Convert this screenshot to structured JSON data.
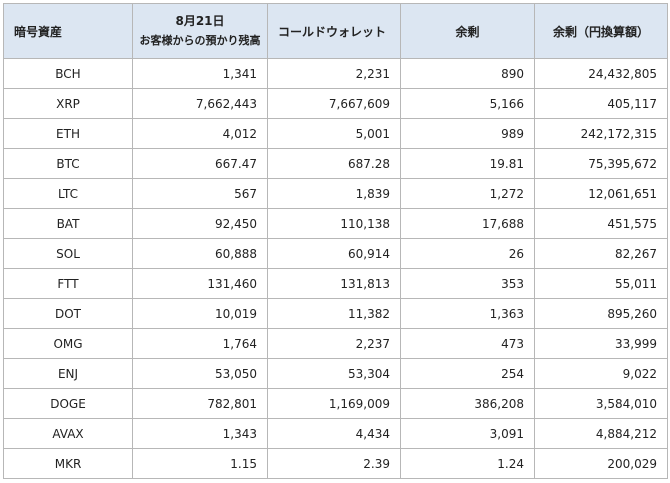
{
  "table": {
    "headers": {
      "asset": "暗号資産",
      "date": "8月21日",
      "deposit": "お客様からの預かり残高",
      "cold_wallet": "コールドウォレット",
      "surplus": "余剰",
      "surplus_yen": "余剰（円換算額）"
    },
    "rows": [
      {
        "asset": "BCH",
        "deposit": "1,341",
        "cold": "2,231",
        "surplus": "890",
        "yen": "24,432,805"
      },
      {
        "asset": "XRP",
        "deposit": "7,662,443",
        "cold": "7,667,609",
        "surplus": "5,166",
        "yen": "405,117"
      },
      {
        "asset": "ETH",
        "deposit": "4,012",
        "cold": "5,001",
        "surplus": "989",
        "yen": "242,172,315"
      },
      {
        "asset": "BTC",
        "deposit": "667.47",
        "cold": "687.28",
        "surplus": "19.81",
        "yen": "75,395,672"
      },
      {
        "asset": "LTC",
        "deposit": "567",
        "cold": "1,839",
        "surplus": "1,272",
        "yen": "12,061,651"
      },
      {
        "asset": "BAT",
        "deposit": "92,450",
        "cold": "110,138",
        "surplus": "17,688",
        "yen": "451,575"
      },
      {
        "asset": "SOL",
        "deposit": "60,888",
        "cold": "60,914",
        "surplus": "26",
        "yen": "82,267"
      },
      {
        "asset": "FTT",
        "deposit": "131,460",
        "cold": "131,813",
        "surplus": "353",
        "yen": "55,011"
      },
      {
        "asset": "DOT",
        "deposit": "10,019",
        "cold": "11,382",
        "surplus": "1,363",
        "yen": "895,260"
      },
      {
        "asset": "OMG",
        "deposit": "1,764",
        "cold": "2,237",
        "surplus": "473",
        "yen": "33,999"
      },
      {
        "asset": "ENJ",
        "deposit": "53,050",
        "cold": "53,304",
        "surplus": "254",
        "yen": "9,022"
      },
      {
        "asset": "DOGE",
        "deposit": "782,801",
        "cold": "1,169,009",
        "surplus": "386,208",
        "yen": "3,584,010"
      },
      {
        "asset": "AVAX",
        "deposit": "1,343",
        "cold": "4,434",
        "surplus": "3,091",
        "yen": "4,884,212"
      },
      {
        "asset": "MKR",
        "deposit": "1.15",
        "cold": "2.39",
        "surplus": "1.24",
        "yen": "200,029"
      }
    ]
  },
  "colors": {
    "header_bg": "#dce6f2",
    "border": "#b7b7b7"
  }
}
